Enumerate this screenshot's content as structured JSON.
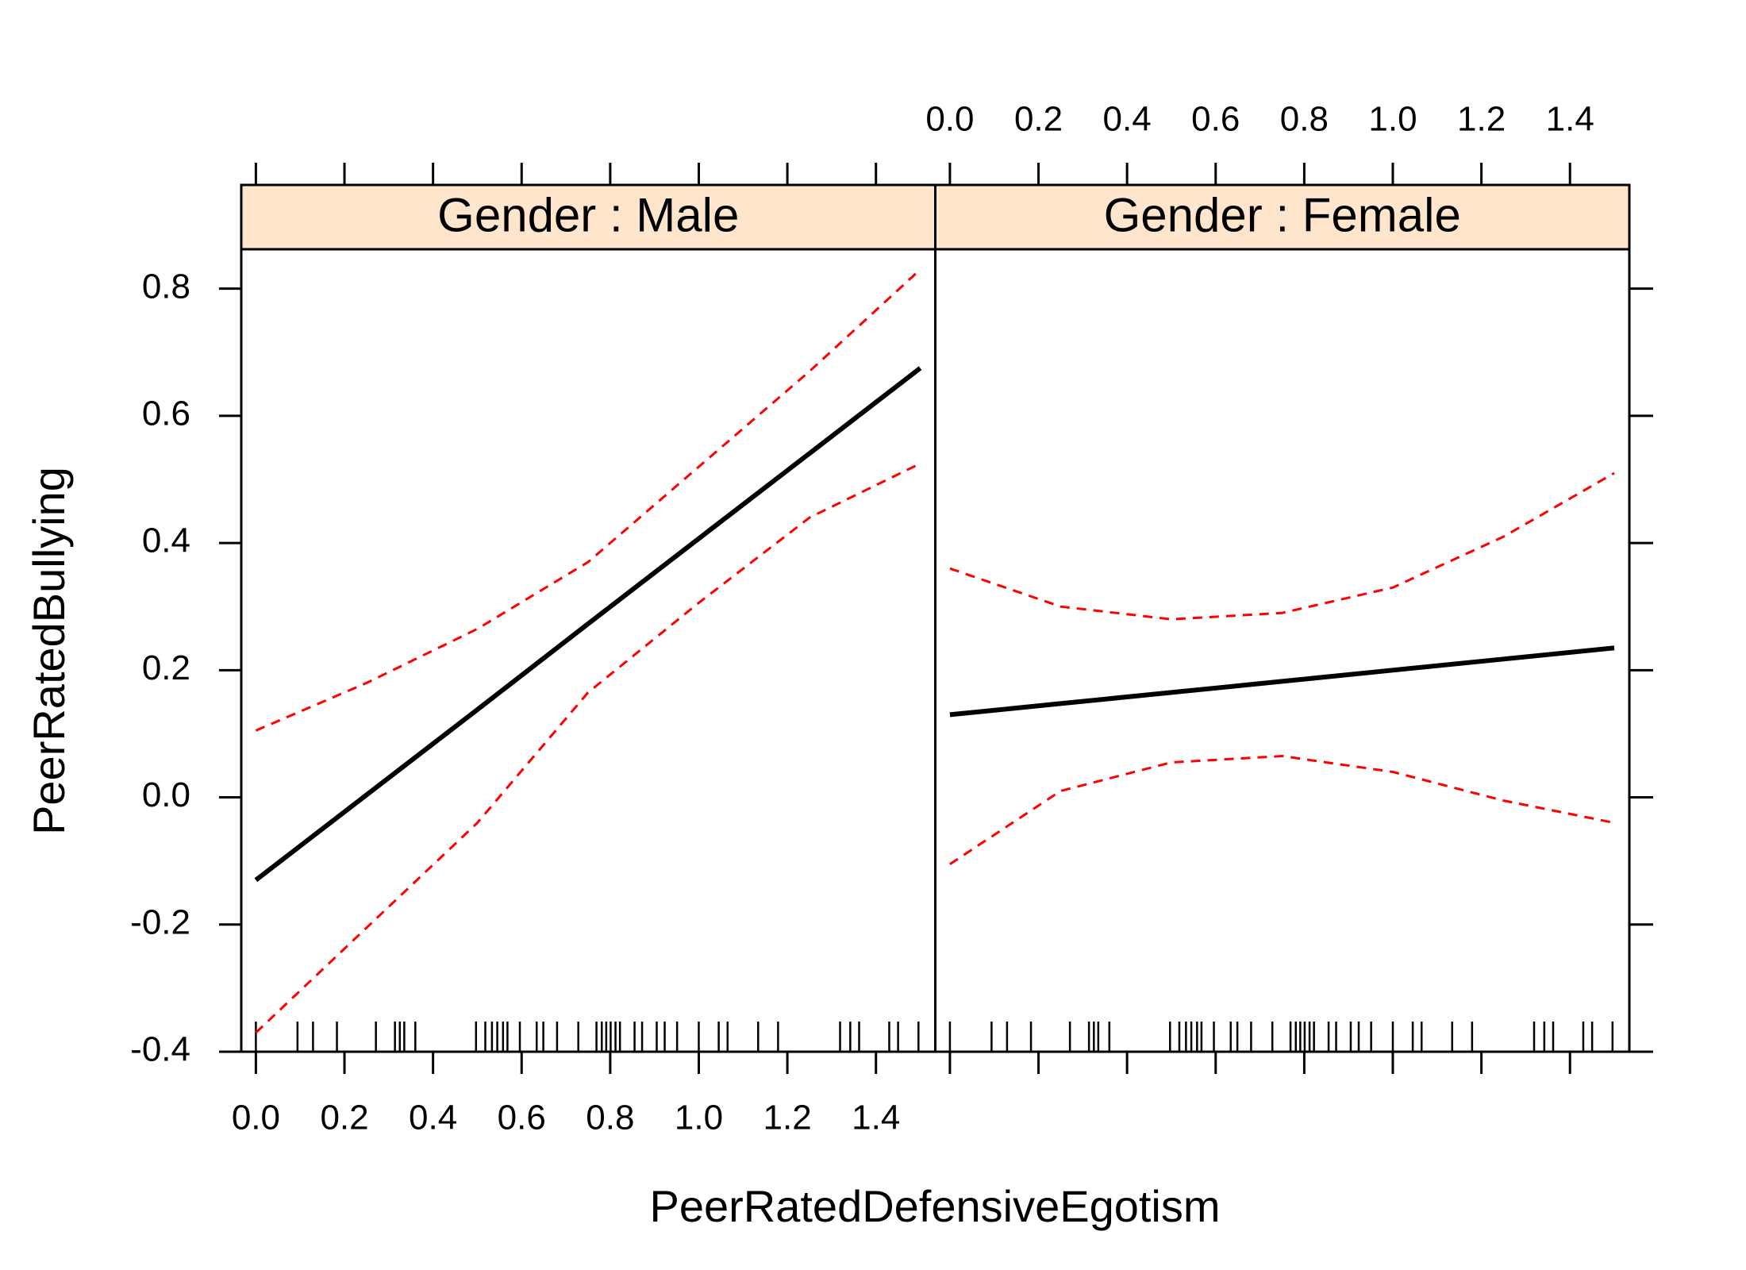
{
  "chart_data": {
    "type": "line",
    "x_label": "PeerRatedDefensiveEgotism",
    "y_label": "PeerRatedBullying",
    "xlim": [
      -0.033,
      1.534
    ],
    "ylim": [
      -0.4,
      0.862
    ],
    "xticks": [
      {
        "value": 0,
        "label": "0.0"
      },
      0.2,
      0.4,
      0.6,
      0.8,
      {
        "value": 1,
        "label": "1.0"
      },
      1.2,
      1.4
    ],
    "yticks": [
      -0.4,
      -0.2,
      {
        "value": 0,
        "label": "0.0"
      },
      0.2,
      0.4,
      0.6,
      0.8
    ],
    "strip_color": "#ffe5cc",
    "x": [
      0,
      0.25,
      0.5,
      0.75,
      1.0,
      1.25,
      1.5
    ],
    "rug": [
      0.0,
      0.094,
      0.129,
      0.183,
      0.271,
      0.314,
      0.325,
      0.335,
      0.36,
      0.497,
      0.518,
      0.533,
      0.545,
      0.558,
      0.568,
      0.596,
      0.634,
      0.649,
      0.68,
      0.728,
      0.769,
      0.781,
      0.791,
      0.801,
      0.812,
      0.822,
      0.855,
      0.872,
      0.905,
      0.923,
      0.951,
      1.0,
      1.045,
      1.065,
      1.134,
      1.179,
      1.319,
      1.342,
      1.362,
      1.43,
      1.45,
      1.496
    ],
    "panels": [
      {
        "title": "Gender : Male",
        "series": [
          {
            "color": "#000000",
            "dashed": false,
            "values": [
              -0.13,
              0.004,
              0.138,
              0.273,
              0.407,
              0.541,
              0.675
            ]
          },
          {
            "color": "#ff0000",
            "dashed": true,
            "values": [
              0.105,
              0.18,
              0.265,
              0.37,
              0.52,
              0.67,
              0.83
            ]
          },
          {
            "color": "#ff0000",
            "dashed": true,
            "values": [
              -0.37,
              -0.205,
              -0.04,
              0.165,
              0.306,
              0.44,
              0.525
            ]
          }
        ]
      },
      {
        "title": "Gender : Female",
        "series": [
          {
            "color": "#000000",
            "dashed": false,
            "values": [
              0.13,
              0.1475,
              0.165,
              0.1825,
              0.2,
              0.2175,
              0.235
            ]
          },
          {
            "color": "#ff0000",
            "dashed": true,
            "values": [
              0.36,
              0.3,
              0.28,
              0.29,
              0.33,
              0.41,
              0.51
            ]
          },
          {
            "color": "#ff0000",
            "dashed": true,
            "values": [
              -0.105,
              0.01,
              0.055,
              0.065,
              0.04,
              -0.005,
              -0.04
            ]
          }
        ]
      }
    ]
  }
}
